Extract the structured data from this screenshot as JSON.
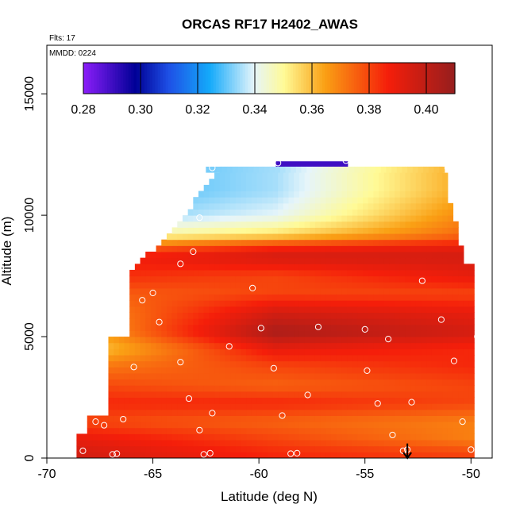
{
  "chart_data": {
    "type": "heatmap",
    "title": "ORCAS RF17 H2402_AWAS",
    "subtitle_flts": "Flts: 17",
    "subtitle_mmdd": "MMDD: 0224",
    "xlabel": "Latitude (deg N)",
    "ylabel": "Altitude (m)",
    "xlim": [
      -70,
      -49
    ],
    "ylim": [
      0,
      17000
    ],
    "x_ticks": [
      "-70",
      "-65",
      "-60",
      "-55",
      "-50"
    ],
    "y_ticks": [
      "0",
      "5000",
      "10000",
      "15000"
    ],
    "colorbar": {
      "range": [
        0.28,
        0.41
      ],
      "tick_labels": [
        "0.28",
        "0.30",
        "0.32",
        "0.34",
        "0.36",
        "0.38",
        "0.40"
      ],
      "tick_values": [
        0.28,
        0.3,
        0.32,
        0.34,
        0.36,
        0.38,
        0.4
      ]
    },
    "field_extent": {
      "lat_min": -68.6,
      "lat_max": -49.9,
      "alt_min": 0,
      "alt_max": 12000
    },
    "bands": [
      {
        "alt": 12100,
        "lat_from": -59.2,
        "lat_to": -55.8,
        "value": 0.29
      },
      {
        "alt": 11000,
        "west": 0.325,
        "mid": 0.335,
        "east": 0.365
      },
      {
        "alt": 10000,
        "west": 0.33,
        "mid": 0.34,
        "east": 0.37
      },
      {
        "alt": 9200,
        "west": 0.345,
        "mid": 0.355,
        "east": 0.375
      },
      {
        "alt": 8700,
        "west": 0.37,
        "mid": 0.385,
        "east": 0.39
      },
      {
        "alt": 8300,
        "west": 0.385,
        "mid": 0.395,
        "east": 0.395
      },
      {
        "alt": 7500,
        "west": 0.385,
        "mid": 0.38,
        "east": 0.39
      },
      {
        "alt": 6800,
        "west": 0.375,
        "mid": 0.38,
        "east": 0.38
      },
      {
        "alt": 6000,
        "west": 0.365,
        "mid": 0.395,
        "east": 0.39
      },
      {
        "alt": 5200,
        "west": 0.36,
        "mid": 0.405,
        "east": 0.395
      },
      {
        "alt": 4500,
        "west": 0.355,
        "mid": 0.39,
        "east": 0.385
      },
      {
        "alt": 3800,
        "west": 0.37,
        "mid": 0.38,
        "east": 0.385
      },
      {
        "alt": 3000,
        "west": 0.38,
        "mid": 0.375,
        "east": 0.38
      },
      {
        "alt": 2300,
        "west": 0.385,
        "mid": 0.385,
        "east": 0.38
      },
      {
        "alt": 1500,
        "west": 0.38,
        "mid": 0.375,
        "east": 0.37
      },
      {
        "alt": 800,
        "west": 0.39,
        "mid": 0.38,
        "east": 0.37
      },
      {
        "alt": 200,
        "west": 0.395,
        "mid": 0.385,
        "east": 0.38
      }
    ],
    "sample_points": [
      {
        "lat": -62.2,
        "alt": 11950
      },
      {
        "lat": -59.1,
        "alt": 12150
      },
      {
        "lat": -55.9,
        "alt": 12250
      },
      {
        "lat": -51.1,
        "alt": 11950
      },
      {
        "lat": -62.8,
        "alt": 9900
      },
      {
        "lat": -63.1,
        "alt": 8500
      },
      {
        "lat": -63.7,
        "alt": 8000
      },
      {
        "lat": -49.8,
        "alt": 8600
      },
      {
        "lat": -60.3,
        "alt": 7000
      },
      {
        "lat": -52.3,
        "alt": 7300
      },
      {
        "lat": -65.0,
        "alt": 6800
      },
      {
        "lat": -65.5,
        "alt": 6500
      },
      {
        "lat": -64.7,
        "alt": 5600
      },
      {
        "lat": -59.9,
        "alt": 5350
      },
      {
        "lat": -57.2,
        "alt": 5400
      },
      {
        "lat": -55.0,
        "alt": 5300
      },
      {
        "lat": -51.4,
        "alt": 5700
      },
      {
        "lat": -61.4,
        "alt": 4600
      },
      {
        "lat": -53.9,
        "alt": 4900
      },
      {
        "lat": -49.7,
        "alt": 5000
      },
      {
        "lat": -63.7,
        "alt": 3950
      },
      {
        "lat": -65.9,
        "alt": 3750
      },
      {
        "lat": -59.3,
        "alt": 3700
      },
      {
        "lat": -50.8,
        "alt": 4000
      },
      {
        "lat": -54.9,
        "alt": 3600
      },
      {
        "lat": -57.7,
        "alt": 2600
      },
      {
        "lat": -67.5,
        "alt": 2500
      },
      {
        "lat": -63.3,
        "alt": 2450
      },
      {
        "lat": -54.4,
        "alt": 2250
      },
      {
        "lat": -52.8,
        "alt": 2300
      },
      {
        "lat": -62.2,
        "alt": 1850
      },
      {
        "lat": -58.9,
        "alt": 1750
      },
      {
        "lat": -66.4,
        "alt": 1600
      },
      {
        "lat": -67.7,
        "alt": 1500
      },
      {
        "lat": -67.3,
        "alt": 1350
      },
      {
        "lat": -50.4,
        "alt": 1500
      },
      {
        "lat": -62.8,
        "alt": 1150
      },
      {
        "lat": -53.7,
        "alt": 950
      },
      {
        "lat": -68.3,
        "alt": 300
      },
      {
        "lat": -66.9,
        "alt": 150
      },
      {
        "lat": -66.7,
        "alt": 180
      },
      {
        "lat": -62.6,
        "alt": 150
      },
      {
        "lat": -62.3,
        "alt": 200
      },
      {
        "lat": -58.5,
        "alt": 180
      },
      {
        "lat": -58.2,
        "alt": 200
      },
      {
        "lat": -53.2,
        "alt": 300
      },
      {
        "lat": -53.0,
        "alt": 350
      },
      {
        "lat": -50.0,
        "alt": 350
      }
    ],
    "arrow_marker": {
      "lat": -53.0,
      "alt_from": 600,
      "alt_to": 0
    },
    "grid": false,
    "legend": "colorbar top"
  }
}
